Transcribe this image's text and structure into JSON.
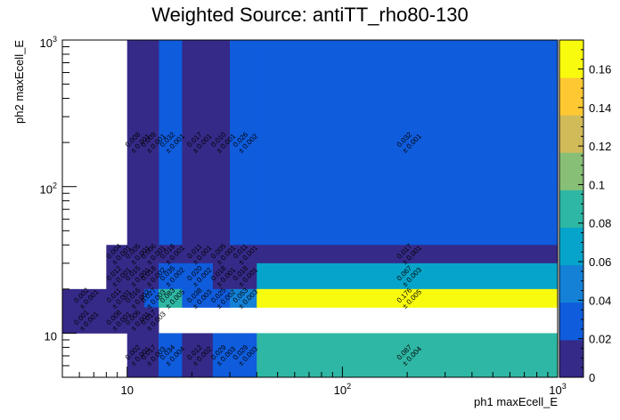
{
  "chart_data": {
    "type": "heatmap",
    "title": "Weighted Source: antiTT_rho80-130",
    "xlabel": "ph1 maxEcell_E",
    "ylabel": "ph2 maxEcell_E",
    "xscale": "log",
    "yscale": "log",
    "xlim": [
      5,
      1000
    ],
    "ylim": [
      5,
      1000
    ],
    "x_edges": [
      5,
      8,
      10,
      12,
      14,
      18,
      25,
      30,
      40,
      1000
    ],
    "y_edges": [
      5,
      10,
      15,
      20,
      30,
      40,
      1000
    ],
    "x_ticks": [
      {
        "value": 10,
        "base": "10",
        "exp": ""
      },
      {
        "value": 100,
        "base": "10",
        "exp": "2"
      },
      {
        "value": 1000,
        "base": "10",
        "exp": "3"
      }
    ],
    "y_ticks": [
      {
        "value": 10,
        "base": "10",
        "exp": ""
      },
      {
        "value": 100,
        "base": "10",
        "exp": "2"
      },
      {
        "value": 1000,
        "base": "10",
        "exp": "3"
      }
    ],
    "zlim": [
      0,
      0.175
    ],
    "colorbar_ticks": [
      "0",
      "0.02",
      "0.04",
      "0.06",
      "0.08",
      "0.1",
      "0.12",
      "0.14",
      "0.16"
    ],
    "colorbar_values": [
      0,
      0.02,
      0.04,
      0.06,
      0.08,
      0.1,
      0.12,
      0.14,
      0.16
    ],
    "palette": [
      "#352a87",
      "#0f5cdd",
      "#1481d6",
      "#06a4ca",
      "#2eb7a4",
      "#87bf77",
      "#d1bb59",
      "#fec832",
      "#f9fb0e"
    ],
    "cells": [
      {
        "xi": 4,
        "yi": 5,
        "value": 0.032,
        "error": 0.001,
        "label_v": "0.032",
        "label_e": "± 0.001"
      },
      {
        "xi": 8,
        "yi": 5,
        "value": 0.032,
        "error": 0.001,
        "label_v": "0.032",
        "label_e": "± 0.001"
      },
      {
        "xi": 2,
        "yi": 5,
        "value": 0.008,
        "error": 0.001,
        "label_v": "0.008",
        "label_e": "± 0.001"
      },
      {
        "xi": 3,
        "yi": 5,
        "value": 0.009,
        "error": 0.001,
        "label_v": "0.009",
        "label_e": "± 0.001"
      },
      {
        "xi": 5,
        "yi": 5,
        "value": 0.017,
        "error": 0.001,
        "label_v": "0.017",
        "label_e": "± 0.001"
      },
      {
        "xi": 6,
        "yi": 5,
        "value": 0.01,
        "error": 0.001,
        "label_v": "0.010",
        "label_e": "± 0.001"
      },
      {
        "xi": 7,
        "yi": 5,
        "value": 0.026,
        "error": 0.002,
        "label_v": "0.026",
        "label_e": "± 0.002"
      },
      {
        "xi": 1,
        "yi": 4,
        "value": 0.004,
        "error": 0.001,
        "label_v": "0.004",
        "label_e": "± 0.001"
      },
      {
        "xi": 2,
        "yi": 4,
        "value": 0.005,
        "error": 0.001,
        "label_v": "0.005",
        "label_e": "± 0.001"
      },
      {
        "xi": 3,
        "yi": 4,
        "value": 0.006,
        "error": 0.001,
        "label_v": "0.006",
        "label_e": "± 0.001"
      },
      {
        "xi": 4,
        "yi": 4,
        "value": 0.018,
        "error": 0.001,
        "label_v": "0.018",
        "label_e": "± 0.001"
      },
      {
        "xi": 5,
        "yi": 4,
        "value": 0.011,
        "error": 0.001,
        "label_v": "0.011",
        "label_e": "± 0.001"
      },
      {
        "xi": 6,
        "yi": 4,
        "value": 0.005,
        "error": 0.001,
        "label_v": "0.005",
        "label_e": "± 0.001"
      },
      {
        "xi": 7,
        "yi": 4,
        "value": 0.011,
        "error": 0.001,
        "label_v": "0.011",
        "label_e": "± 0.001"
      },
      {
        "xi": 8,
        "yi": 4,
        "value": 0.017,
        "error": 0.001,
        "label_v": "0.017",
        "label_e": "± 0.001"
      },
      {
        "xi": 1,
        "yi": 3,
        "value": 0.012,
        "error": 0.001,
        "label_v": "0.012",
        "label_e": "± 0.001"
      },
      {
        "xi": 2,
        "yi": 3,
        "value": 0.015,
        "error": 0.001,
        "label_v": "0.015",
        "label_e": "± 0.001"
      },
      {
        "xi": 3,
        "yi": 3,
        "value": 0.018,
        "error": 0.002,
        "label_v": "0.018",
        "label_e": "± 0.002"
      },
      {
        "xi": 4,
        "yi": 3,
        "value": 0.035,
        "error": 0.002,
        "label_v": "0.035",
        "label_e": "± 0.002"
      },
      {
        "xi": 5,
        "yi": 3,
        "value": 0.02,
        "error": 0.002,
        "label_v": "0.020",
        "label_e": "± 0.002"
      },
      {
        "xi": 6,
        "yi": 3,
        "value": 0.018,
        "error": 0.001,
        "label_v": "0.018",
        "label_e": "± 0.001"
      },
      {
        "xi": 7,
        "yi": 3,
        "value": 0.018,
        "error": 0.001,
        "label_v": "0.018",
        "label_e": "± 0.001"
      },
      {
        "xi": 8,
        "yi": 3,
        "value": 0.067,
        "error": 0.003,
        "label_v": "0.067",
        "label_e": "± 0.003"
      },
      {
        "xi": 0,
        "yi": 2,
        "value": 0.002,
        "error": 0.001,
        "label_v": "0.002",
        "label_e": "± 0.001"
      },
      {
        "xi": 1,
        "yi": 2,
        "value": 0.011,
        "error": 0.001,
        "label_v": "0.011",
        "label_e": "± 0.001"
      },
      {
        "xi": 2,
        "yi": 2,
        "value": 0.016,
        "error": 0.002,
        "label_v": "0.016",
        "label_e": "± 0.002"
      },
      {
        "xi": 3,
        "yi": 2,
        "value": 0.027,
        "error": 0.003,
        "label_v": "0.027",
        "label_e": "± 0.003"
      },
      {
        "xi": 4,
        "yi": 2,
        "value": 0.083,
        "error": 0.005,
        "label_v": "0.083",
        "label_e": "± 0.005"
      },
      {
        "xi": 5,
        "yi": 2,
        "value": 0.038,
        "error": 0.003,
        "label_v": "0.038",
        "label_e": "± 0.003"
      },
      {
        "xi": 6,
        "yi": 2,
        "value": 0.025,
        "error": 0.002,
        "label_v": "0.025",
        "label_e": "± 0.002"
      },
      {
        "xi": 7,
        "yi": 2,
        "value": 0.053,
        "error": 0.003,
        "label_v": "0.053",
        "label_e": "± 0.003"
      },
      {
        "xi": 8,
        "yi": 2,
        "value": 0.176,
        "error": 0.005,
        "label_v": "0.176",
        "label_e": "± 0.005"
      },
      {
        "xi": 0,
        "yi": 1,
        "value": 0.001,
        "error": 0.001,
        "label_v": "0.001",
        "label_e": "± 0.001"
      },
      {
        "xi": 1,
        "yi": 1,
        "value": 0.008,
        "error": 0.001,
        "label_v": "0.008",
        "label_e": "± 0.001"
      },
      {
        "xi": 2,
        "yi": 1,
        "value": 0.006,
        "error": 0.001,
        "label_v": "0.006",
        "label_e": "± 0.001"
      },
      {
        "xi": 3,
        "yi": 1,
        "value": 0.017,
        "error": 0.003,
        "label_v": "0.017",
        "label_e": "± 0.003"
      },
      {
        "xi": 2,
        "yi": 0,
        "value": 0.002,
        "error": 0.001,
        "label_v": "0.002",
        "label_e": "± 0.001"
      },
      {
        "xi": 3,
        "yi": 0,
        "value": 0.017,
        "error": 0.003,
        "label_v": "0.017",
        "label_e": "± 0.003"
      },
      {
        "xi": 4,
        "yi": 0,
        "value": 0.034,
        "error": 0.004,
        "label_v": "0.034",
        "label_e": "± 0.004"
      },
      {
        "xi": 5,
        "yi": 0,
        "value": 0.012,
        "error": 0.002,
        "label_v": "0.012",
        "label_e": "± 0.002"
      },
      {
        "xi": 6,
        "yi": 0,
        "value": 0.029,
        "error": 0.003,
        "label_v": "0.029",
        "label_e": "± 0.003"
      },
      {
        "xi": 7,
        "yi": 0,
        "value": 0.029,
        "error": 0.003,
        "label_v": "0.029",
        "label_e": "± 0.003"
      },
      {
        "xi": 8,
        "yi": 0,
        "value": 0.087,
        "error": 0.004,
        "label_v": "0.087",
        "label_e": "± 0.004"
      }
    ]
  }
}
